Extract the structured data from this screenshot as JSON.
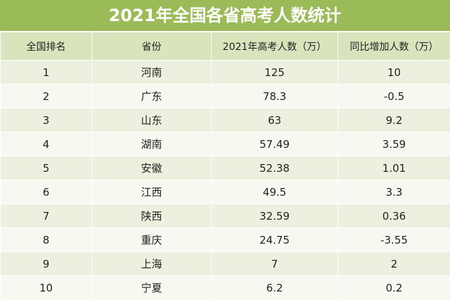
{
  "title": "2021年全国各省高考人数统计",
  "table": {
    "header": [
      "全国排名",
      "省份",
      "2021年高考人数（万）",
      "同比增加人数（万）"
    ],
    "rows": [
      [
        1,
        "河南",
        125,
        10
      ],
      [
        2,
        "广东",
        78.3,
        -0.5
      ],
      [
        3,
        "山东",
        63,
        9.2
      ],
      [
        4,
        "湖南",
        57.49,
        3.59
      ],
      [
        5,
        "安徽",
        52.38,
        1.01
      ],
      [
        6,
        "江西",
        49.5,
        3.3
      ],
      [
        7,
        "陕西",
        32.59,
        0.36
      ],
      [
        8,
        "重庆",
        24.75,
        -3.55
      ],
      [
        9,
        "上海",
        7,
        2
      ],
      [
        10,
        "宁夏",
        6.2,
        0.2
      ]
    ]
  }
}
